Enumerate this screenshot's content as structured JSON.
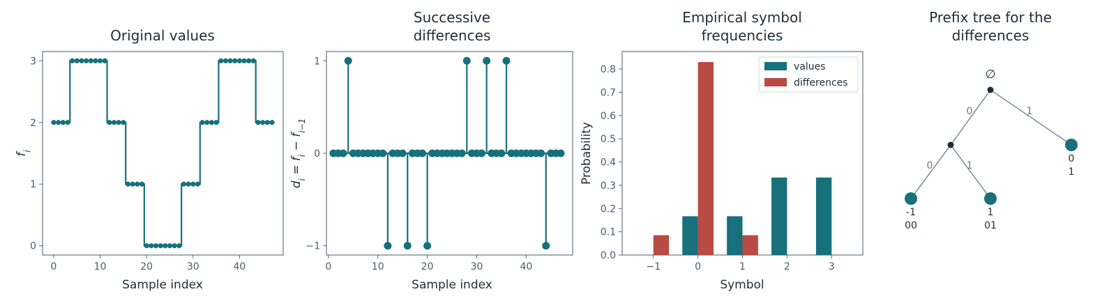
{
  "colors": {
    "teal": "#17707b",
    "red": "#b94a44",
    "axis": "#55687a",
    "text": "#1f2d3a",
    "node_dark": "#1f2d3a"
  },
  "chart_data": [
    {
      "type": "line",
      "style": "step-with-markers",
      "title": "Original values",
      "xlabel": "Sample index",
      "ylabel": "f_i",
      "xlim": [
        -2.4,
        49.4
      ],
      "ylim": [
        -0.15,
        3.15
      ],
      "xticks": [
        0,
        10,
        20,
        30,
        40
      ],
      "yticks": [
        0,
        1,
        2,
        3
      ],
      "x": [
        0,
        1,
        2,
        3,
        4,
        5,
        6,
        7,
        8,
        9,
        10,
        11,
        12,
        13,
        14,
        15,
        16,
        17,
        18,
        19,
        20,
        21,
        22,
        23,
        24,
        25,
        26,
        27,
        28,
        29,
        30,
        31,
        32,
        33,
        34,
        35,
        36,
        37,
        38,
        39,
        40,
        41,
        42,
        43,
        44,
        45,
        46,
        47
      ],
      "values": [
        2,
        2,
        2,
        2,
        3,
        3,
        3,
        3,
        3,
        3,
        3,
        3,
        2,
        2,
        2,
        2,
        1,
        1,
        1,
        1,
        0,
        0,
        0,
        0,
        0,
        0,
        0,
        0,
        1,
        1,
        1,
        1,
        2,
        2,
        2,
        2,
        3,
        3,
        3,
        3,
        3,
        3,
        3,
        3,
        2,
        2,
        2,
        2
      ]
    },
    {
      "type": "scatter",
      "style": "stem",
      "title": "Successive differences",
      "xlabel": "Sample index",
      "ylabel": "d_i = f_i − f_{i−1}",
      "xlim": [
        -0.4,
        49.4
      ],
      "ylim": [
        -1.1,
        1.1
      ],
      "xticks": [
        0,
        10,
        20,
        30,
        40
      ],
      "yticks": [
        -1,
        0,
        1
      ],
      "x": [
        1,
        2,
        3,
        4,
        5,
        6,
        7,
        8,
        9,
        10,
        11,
        12,
        13,
        14,
        15,
        16,
        17,
        18,
        19,
        20,
        21,
        22,
        23,
        24,
        25,
        26,
        27,
        28,
        29,
        30,
        31,
        32,
        33,
        34,
        35,
        36,
        37,
        38,
        39,
        40,
        41,
        42,
        43,
        44,
        45,
        46,
        47
      ],
      "values": [
        0,
        0,
        0,
        1,
        0,
        0,
        0,
        0,
        0,
        0,
        0,
        -1,
        0,
        0,
        0,
        -1,
        0,
        0,
        0,
        -1,
        0,
        0,
        0,
        0,
        0,
        0,
        0,
        1,
        0,
        0,
        0,
        1,
        0,
        0,
        0,
        1,
        0,
        0,
        0,
        0,
        0,
        0,
        0,
        -1,
        0,
        0,
        0
      ]
    },
    {
      "type": "bar",
      "title": "Empirical symbol frequencies",
      "xlabel": "Symbol",
      "ylabel": "Probability",
      "categories": [
        -1,
        0,
        1,
        2,
        3
      ],
      "xlim": [
        -1.7,
        3.7
      ],
      "ylim": [
        0,
        0.875
      ],
      "yticks": [
        0.0,
        0.1,
        0.2,
        0.3,
        0.4,
        0.5,
        0.6,
        0.7,
        0.8
      ],
      "legend_placement": "top-right",
      "series": [
        {
          "name": "values",
          "values": [
            0,
            0.1667,
            0.1667,
            0.3333,
            0.3333
          ]
        },
        {
          "name": "differences",
          "values": [
            0.0851,
            0.8298,
            0.0851,
            0,
            0
          ]
        }
      ]
    }
  ],
  "tree": {
    "title": "Prefix tree for the differences",
    "root_label": "∅",
    "edges": [
      {
        "label": "0"
      },
      {
        "label": "1"
      },
      {
        "label": "0"
      },
      {
        "label": "1"
      }
    ],
    "leaves": [
      {
        "symbol": "-1",
        "code": "00"
      },
      {
        "symbol": "1",
        "code": "01"
      },
      {
        "symbol": "0",
        "code": "1"
      }
    ]
  }
}
